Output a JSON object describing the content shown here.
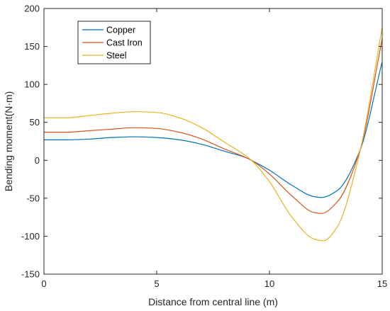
{
  "chart_data": {
    "type": "line",
    "title": "",
    "xlabel": "Distance from central line (m)",
    "ylabel": "Bending moment(N·m)",
    "xlim": [
      0,
      15
    ],
    "ylim": [
      -150,
      200
    ],
    "xticks": [
      0,
      5,
      10,
      15
    ],
    "yticks": [
      -150,
      -100,
      -50,
      0,
      50,
      100,
      150,
      200
    ],
    "grid": false,
    "legend_position": "top-left",
    "series": [
      {
        "name": "Copper",
        "color": "#0072BD",
        "x": [
          0,
          1,
          2,
          3,
          4,
          5,
          6,
          7,
          8,
          9,
          9.2,
          10,
          11,
          12,
          12.3,
          13,
          14,
          15
        ],
        "y": [
          27,
          27,
          28,
          30,
          31,
          30,
          27,
          21,
          12,
          3,
          0,
          -13,
          -33,
          -48,
          -49,
          -40,
          12,
          130
        ]
      },
      {
        "name": "Cast Iron",
        "color": "#D95319",
        "x": [
          0,
          1,
          2,
          3,
          4,
          5,
          6,
          7,
          8,
          9,
          9.2,
          10,
          11,
          12,
          12.3,
          13,
          14,
          15
        ],
        "y": [
          37,
          37,
          39,
          41,
          43,
          42,
          37,
          28,
          15,
          3,
          0,
          -18,
          -47,
          -69,
          -70,
          -55,
          12,
          160
        ]
      },
      {
        "name": "Steel",
        "color": "#EDB120",
        "x": [
          0,
          1,
          2,
          3,
          4,
          5,
          6,
          7,
          8,
          9,
          9.2,
          10,
          11,
          12,
          12.4,
          13,
          14,
          15
        ],
        "y": [
          56,
          56,
          59,
          62,
          64,
          63,
          56,
          43,
          24,
          5,
          0,
          -28,
          -75,
          -104,
          -106,
          -88,
          10,
          175
        ]
      }
    ]
  }
}
